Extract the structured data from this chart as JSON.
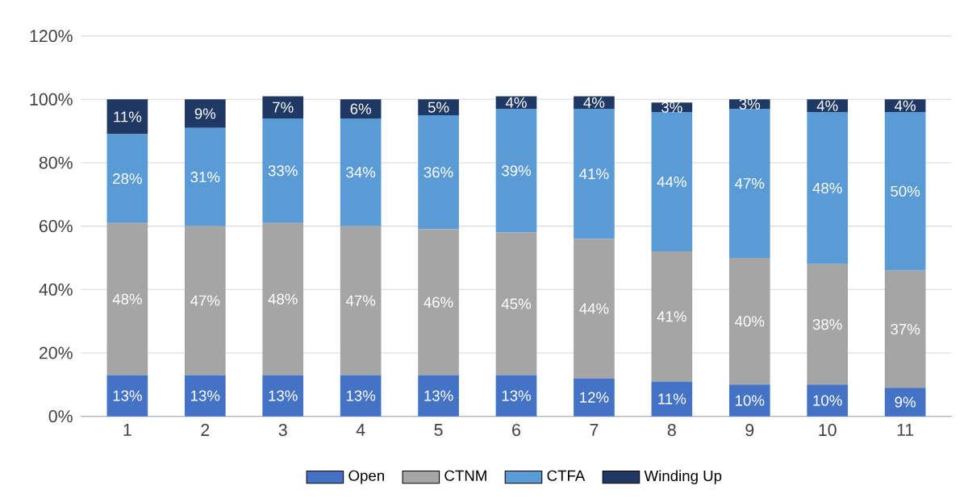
{
  "chart_data": {
    "type": "bar",
    "stacked": true,
    "categories": [
      "1",
      "2",
      "3",
      "4",
      "5",
      "6",
      "7",
      "8",
      "9",
      "10",
      "11"
    ],
    "series": [
      {
        "name": "Open",
        "color": "#4472c4",
        "values": [
          13,
          13,
          13,
          13,
          13,
          13,
          12,
          11,
          10,
          10,
          9
        ],
        "value_labels": [
          "13%",
          "13%",
          "13%",
          "13%",
          "13%",
          "13%",
          "12%",
          "11%",
          "10%",
          "10%",
          "9%"
        ]
      },
      {
        "name": "CTNM",
        "color": "#a5a5a5",
        "values": [
          48,
          47,
          48,
          47,
          46,
          45,
          44,
          41,
          40,
          38,
          37
        ],
        "value_labels": [
          "48%",
          "47%",
          "48%",
          "47%",
          "46%",
          "45%",
          "44%",
          "41%",
          "40%",
          "38%",
          "37%"
        ]
      },
      {
        "name": "CTFA",
        "color": "#5b9bd5",
        "values": [
          28,
          31,
          33,
          34,
          36,
          39,
          41,
          44,
          47,
          48,
          50
        ],
        "value_labels": [
          "28%",
          "31%",
          "33%",
          "34%",
          "36%",
          "39%",
          "41%",
          "44%",
          "47%",
          "48%",
          "50%"
        ]
      },
      {
        "name": "Winding Up",
        "color": "#1f3864",
        "values": [
          11,
          9,
          7,
          6,
          5,
          4,
          4,
          3,
          3,
          4,
          4
        ],
        "value_labels": [
          "11%",
          "9%",
          "7%",
          "6%",
          "5%",
          "4%",
          "4%",
          "3%",
          "3%",
          "4%",
          "4%"
        ]
      }
    ],
    "ylim": [
      0,
      120
    ],
    "yticks": [
      {
        "value": 0,
        "label": "0%"
      },
      {
        "value": 20,
        "label": "20%"
      },
      {
        "value": 40,
        "label": "40%"
      },
      {
        "value": 60,
        "label": "60%"
      },
      {
        "value": 80,
        "label": "80%"
      },
      {
        "value": 100,
        "label": "100%"
      },
      {
        "value": 120,
        "label": "120%"
      }
    ],
    "grid": "y",
    "legend": "bottom"
  }
}
